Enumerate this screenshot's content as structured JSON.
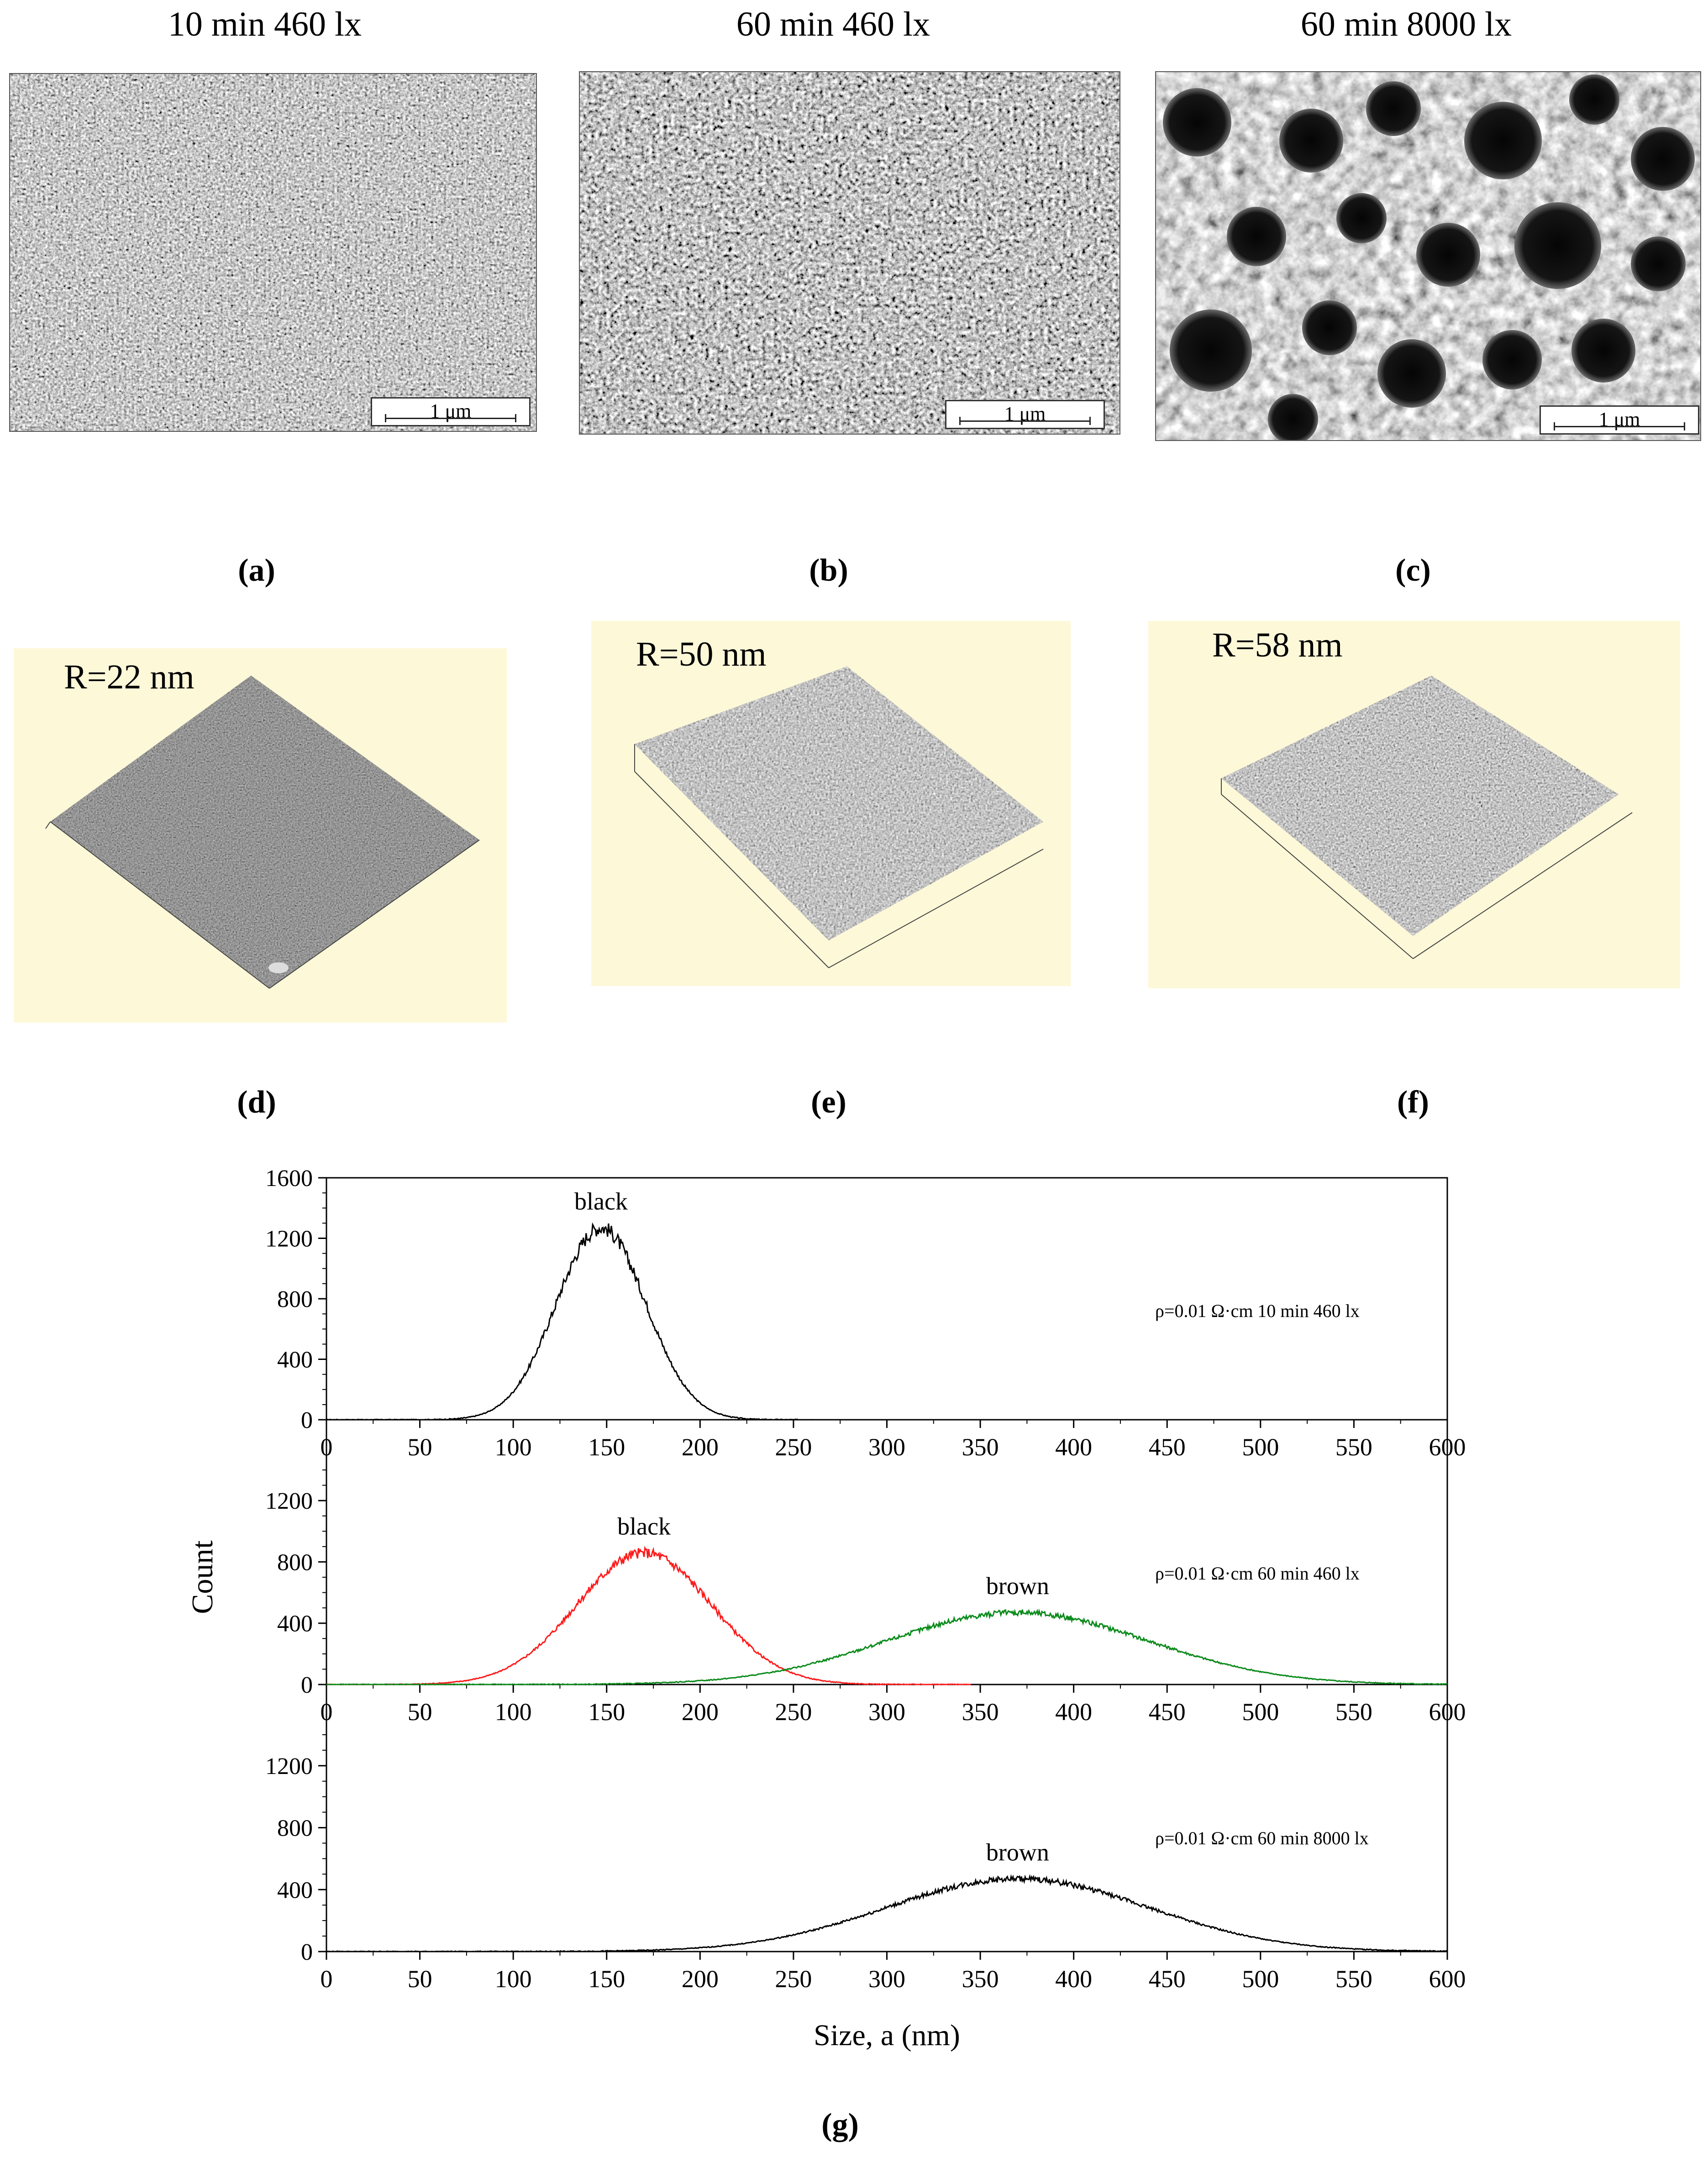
{
  "sem_panels": [
    {
      "caption": "10 min 460 lx",
      "scale_label": "1 μm",
      "letter": "(a)"
    },
    {
      "caption": "60 min 460 lx",
      "scale_label": "1 μm",
      "letter": "(b)"
    },
    {
      "caption": "60 min 8000 lx",
      "scale_label": "1 μm",
      "letter": "(c)"
    }
  ],
  "afm_panels": [
    {
      "roughness": "R=22 nm",
      "letter": "(d)"
    },
    {
      "roughness": "R=50 nm",
      "letter": "(e)"
    },
    {
      "roughness": "R=58 nm",
      "letter": "(f)"
    }
  ],
  "figure_letter": "(g)",
  "colors": {
    "black": "#000000",
    "red": "#ff1a1a",
    "green": "#0a8a1a",
    "afm_bg": "#fdf8d8"
  },
  "chart_data": {
    "type": "line",
    "xlabel": "Size, a (nm)",
    "ylabel": "Count",
    "x_ticks": [
      0,
      50,
      100,
      150,
      200,
      250,
      300,
      350,
      400,
      450,
      500,
      550,
      600
    ],
    "xlim": [
      0,
      600
    ],
    "subplots": [
      {
        "annotation": "ρ=0.01 Ω·cm 10 min 460 lx",
        "ylim": [
          0,
          1600
        ],
        "y_ticks": [
          0,
          400,
          800,
          1200,
          1600
        ],
        "series": [
          {
            "label": "black",
            "color": "#000000",
            "x_range": [
              0,
              260
            ],
            "peak_x": 147,
            "peak_y": 1270,
            "sigma": 24
          }
        ]
      },
      {
        "annotation": "ρ=0.01 Ω·cm 60 min 460 lx",
        "ylim": [
          0,
          1400
        ],
        "y_ticks": [
          0,
          400,
          800,
          1200
        ],
        "series": [
          {
            "label": "black",
            "color": "#ff1a1a",
            "x_range": [
              0,
              345
            ],
            "peak_x": 170,
            "peak_y": 860,
            "sigma": 36
          },
          {
            "label": "brown",
            "color": "#0a8a1a",
            "x_range": [
              0,
              600
            ],
            "peak_x": 370,
            "peak_y": 470,
            "sigma": 70
          }
        ]
      },
      {
        "annotation": "ρ=0.01 Ω·cm 60 min 8000 lx",
        "ylim": [
          0,
          1400
        ],
        "y_ticks": [
          0,
          400,
          800,
          1200
        ],
        "series": [
          {
            "label": "brown",
            "color": "#000000",
            "x_range": [
              0,
              600
            ],
            "peak_x": 370,
            "peak_y": 470,
            "sigma": 70
          }
        ]
      }
    ]
  }
}
